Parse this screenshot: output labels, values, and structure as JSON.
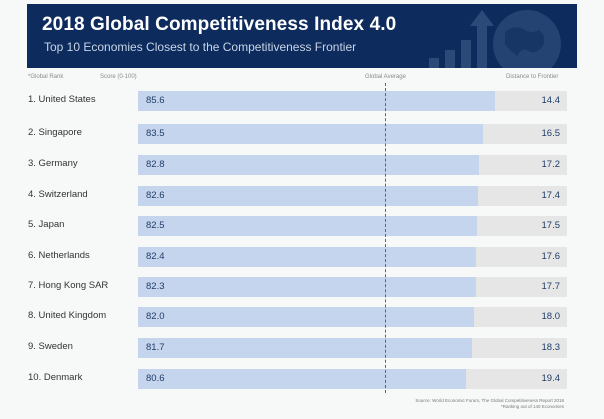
{
  "banner": {
    "title": "2018 Global Competitiveness Index 4.0",
    "subtitle": "Top 10 Economies Closest to the Competitiveness Frontier"
  },
  "headers": {
    "rank": "*Global Rank",
    "score": "Score (0-100)",
    "average": "Global Average",
    "distance": "Distance to Frontier"
  },
  "colors": {
    "banner": "#0d2b5c",
    "bar": "#c6d5ee",
    "track": "#e6e6e6"
  },
  "chart_data": {
    "type": "bar",
    "title": "2018 Global Competitiveness Index 4.0",
    "subtitle": "Top 10 Economies Closest to the Competitiveness Frontier",
    "xlabel": "Score (0-100)",
    "ylabel": "*Global Rank",
    "categories": [
      "1. United States",
      "2. Singapore",
      "3. Germany",
      "4. Switzerland",
      "5. Japan",
      "6. Netherlands",
      "7. Hong Kong SAR",
      "8. United Kingdom",
      "9. Sweden",
      "10. Denmark"
    ],
    "series": [
      {
        "name": "Score (0-100)",
        "values": [
          85.6,
          83.5,
          82.8,
          82.6,
          82.5,
          82.4,
          82.3,
          82.0,
          81.7,
          80.6
        ]
      },
      {
        "name": "Distance to Frontier",
        "values": [
          14.4,
          16.5,
          17.2,
          17.4,
          17.5,
          17.6,
          17.7,
          18.0,
          18.3,
          19.4
        ]
      }
    ],
    "annotations": [
      "Global Average"
    ],
    "xlim": [
      0,
      100
    ],
    "grid": false,
    "legend": "none"
  },
  "rows": [
    {
      "label": "1. United States",
      "score": "85.6",
      "distance": "14.4"
    },
    {
      "label": "2. Singapore",
      "score": "83.5",
      "distance": "16.5"
    },
    {
      "label": "3. Germany",
      "score": "82.8",
      "distance": "17.2"
    },
    {
      "label": "4. Switzerland",
      "score": "82.6",
      "distance": "17.4"
    },
    {
      "label": "5. Japan",
      "score": "82.5",
      "distance": "17.5"
    },
    {
      "label": "6. Netherlands",
      "score": "82.4",
      "distance": "17.6"
    },
    {
      "label": "7. Hong Kong SAR",
      "score": "82.3",
      "distance": "17.7"
    },
    {
      "label": "8. United Kingdom",
      "score": "82.0",
      "distance": "18.0"
    },
    {
      "label": "9. Sweden",
      "score": "81.7",
      "distance": "18.3"
    },
    {
      "label": "10. Denmark",
      "score": "80.6",
      "distance": "19.4"
    }
  ],
  "footer": {
    "source": "Source: World Economic Forum, The Global Competitiveness Report 2018",
    "note": "*Ranking out of 140 Economies"
  }
}
